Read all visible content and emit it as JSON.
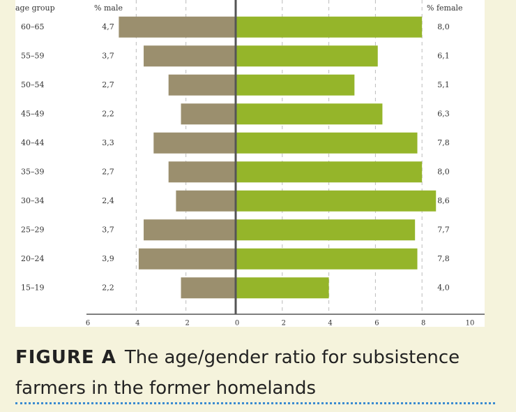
{
  "chart_data": {
    "type": "pyramid",
    "category_label": "age group",
    "categories": [
      "60–65",
      "55–59",
      "50–54",
      "45–49",
      "40–44",
      "35–39",
      "30–34",
      "25–29",
      "20–24",
      "15–19"
    ],
    "series": [
      {
        "name": "% male",
        "color": "#9b8f6e",
        "side": "left",
        "values": [
          4.7,
          3.7,
          2.7,
          2.2,
          3.3,
          2.7,
          2.4,
          3.7,
          3.9,
          2.2
        ],
        "value_labels": [
          "4,7",
          "3,7",
          "2,7",
          "2,2",
          "3,3",
          "2,7",
          "2,4",
          "3,7",
          "3,9",
          "2,2"
        ],
        "xlim": [
          6,
          0
        ],
        "xticks": [
          6,
          4,
          2
        ]
      },
      {
        "name": "% female",
        "color": "#95b52a",
        "side": "right",
        "values": [
          8.0,
          6.1,
          5.1,
          6.3,
          7.8,
          8.0,
          8.6,
          7.7,
          7.8,
          4.0
        ],
        "value_labels": [
          "8,0",
          "6,1",
          "5,1",
          "6,3",
          "7,8",
          "8,0",
          "8,6",
          "7,7",
          "7,8",
          "4,0"
        ],
        "xlim": [
          0,
          10
        ],
        "xticks": [
          0,
          2,
          4,
          6,
          8,
          10
        ]
      }
    ],
    "grid": true,
    "caption": {
      "label": "FIGURE A",
      "text": "The age/gender ratio for subsistence farmers in the former homelands"
    }
  }
}
